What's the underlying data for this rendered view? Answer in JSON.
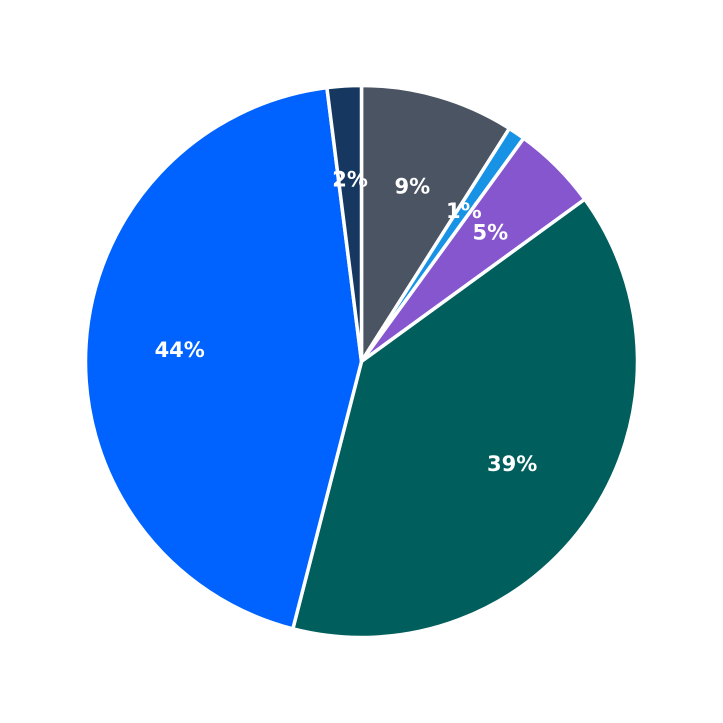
{
  "chart_data": {
    "type": "pie",
    "start_angle_deg": 90,
    "direction": "clockwise",
    "slices": [
      {
        "label": "9%",
        "value": 9,
        "color": "#4a5462"
      },
      {
        "label": "1%",
        "value": 1,
        "color": "#1792e5"
      },
      {
        "label": "5%",
        "value": 5,
        "color": "#8656cf"
      },
      {
        "label": "39%",
        "value": 39,
        "color": "#005e5d"
      },
      {
        "label": "44%",
        "value": 44,
        "color": "#0063ff"
      },
      {
        "label": "2%",
        "value": 2,
        "color": "#163860"
      }
    ]
  }
}
